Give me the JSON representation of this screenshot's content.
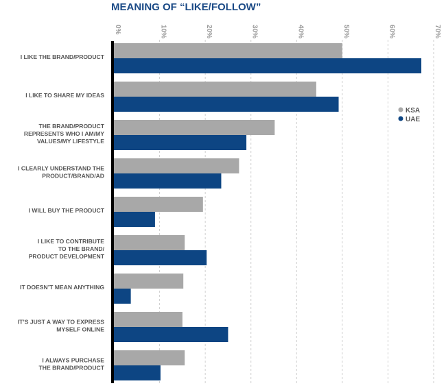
{
  "chart_data": {
    "type": "bar",
    "orientation": "horizontal",
    "title": "MEANING OF “LIKE/FOLLOW”",
    "xlim": [
      0,
      70
    ],
    "ticks": [
      "0%",
      "10%",
      "20%",
      "30%",
      "40%",
      "50%",
      "60%",
      "70%"
    ],
    "grid": true,
    "legend_position": "right",
    "categories": [
      [
        "I LIKE THE BRAND/PRODUCT"
      ],
      [
        "I LIKE TO SHARE MY IDEAS"
      ],
      [
        "THE BRAND/PRODUCT",
        "REPRESENTS WHO I AM/MY",
        "VALUES/MY LIFESTYLE"
      ],
      [
        "I CLEARLY UNDERSTAND THE",
        "PRODUCT/BRAND/AD"
      ],
      [
        "I WILL BUY THE PRODUCT"
      ],
      [
        "I LIKE TO CONTRIBUTE",
        "TO THE BRAND/",
        "PRODUCT DEVELOPMENT"
      ],
      [
        "IT DOESN’T MEAN ANYTHING"
      ],
      [
        "IT’S JUST A WAY TO EXPRESS",
        "MYSELF ONLINE"
      ],
      [
        "I ALWAYS PURCHASE",
        "THE BRAND/PRODUCT"
      ]
    ],
    "series": [
      {
        "name": "KSA",
        "color": "#a8a8a8",
        "values": [
          50,
          44.3,
          35.2,
          27.4,
          19.5,
          15.5,
          15.2,
          15,
          15.5
        ]
      },
      {
        "name": "UAE",
        "color": "#0d4583",
        "values": [
          67.3,
          49.2,
          29,
          23.5,
          9,
          20.3,
          3.7,
          25,
          10.2
        ]
      }
    ]
  }
}
